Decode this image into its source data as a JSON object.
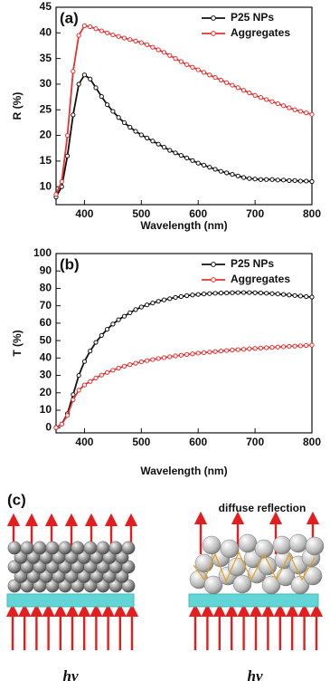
{
  "chart_data": [
    {
      "type": "line",
      "panel_label": "(a)",
      "x_label": "Wavelength (nm)",
      "y_label": "R (%)",
      "xlim": [
        350,
        800
      ],
      "xticks": [
        400,
        500,
        600,
        700,
        800
      ],
      "ylim": [
        6.5,
        45
      ],
      "yticks": [
        10,
        15,
        20,
        25,
        30,
        35,
        40,
        45
      ],
      "legend": "upper right",
      "grid": false,
      "x": [
        350,
        360,
        370,
        380,
        390,
        400,
        410,
        420,
        430,
        440,
        450,
        460,
        470,
        480,
        490,
        500,
        510,
        520,
        530,
        540,
        550,
        560,
        570,
        580,
        590,
        600,
        610,
        620,
        630,
        640,
        650,
        660,
        670,
        680,
        690,
        700,
        710,
        720,
        730,
        740,
        750,
        760,
        770,
        780,
        790,
        800
      ],
      "series": [
        {
          "name": "P25 NPs",
          "color": "#111111",
          "values": [
            8,
            10,
            16,
            24,
            30,
            31.8,
            31,
            29.3,
            27.6,
            26,
            24.7,
            23.5,
            22.5,
            21.6,
            20.8,
            20.1,
            19.5,
            18.9,
            18.3,
            17.7,
            17.1,
            16.6,
            16.1,
            15.6,
            15.1,
            14.6,
            14.2,
            13.8,
            13.4,
            13,
            12.7,
            12.4,
            12.1,
            11.8,
            11.6,
            11.5,
            11.4,
            11.4,
            11.4,
            11.3,
            11.3,
            11.2,
            11.2,
            11.1,
            11.1,
            11
          ]
        },
        {
          "name": "Aggregates",
          "color": "#e8312f",
          "values": [
            8.5,
            11,
            20,
            32.5,
            39.5,
            41.4,
            41.2,
            40.8,
            40.4,
            40,
            39.6,
            39.3,
            39,
            38.7,
            38.4,
            38.1,
            37.7,
            37.2,
            36.7,
            36.2,
            35.6,
            35,
            34.4,
            33.8,
            33.3,
            32.8,
            32.3,
            31.8,
            31.3,
            30.8,
            30.3,
            29.8,
            29.3,
            28.8,
            28.3,
            27.8,
            27.4,
            27,
            26.6,
            26.2,
            25.8,
            25.4,
            25,
            24.7,
            24.4,
            24.1
          ]
        }
      ]
    },
    {
      "type": "line",
      "panel_label": "(b)",
      "x_label": "Wavelength (nm)",
      "y_label": "T (%)",
      "xlim": [
        350,
        800
      ],
      "xticks": [
        400,
        500,
        600,
        700,
        800
      ],
      "ylim": [
        -3,
        100
      ],
      "yticks": [
        0,
        10,
        20,
        30,
        40,
        50,
        60,
        70,
        80,
        90,
        100
      ],
      "legend": "upper right",
      "grid": false,
      "x": [
        350,
        360,
        370,
        380,
        390,
        400,
        410,
        420,
        430,
        440,
        450,
        460,
        470,
        480,
        490,
        500,
        510,
        520,
        530,
        540,
        550,
        560,
        570,
        580,
        590,
        600,
        610,
        620,
        630,
        640,
        650,
        660,
        670,
        680,
        690,
        700,
        710,
        720,
        730,
        740,
        750,
        760,
        770,
        780,
        790,
        800
      ],
      "series": [
        {
          "name": "P25 NPs",
          "color": "#111111",
          "values": [
            0,
            2,
            8,
            19,
            30,
            38,
            44,
            49,
            53,
            56.5,
            59.5,
            62,
            64,
            66,
            67.8,
            69.3,
            70.5,
            71.6,
            72.6,
            73.4,
            74.1,
            74.8,
            75.3,
            75.8,
            76.2,
            76.5,
            76.8,
            77,
            77.2,
            77.3,
            77.4,
            77.5,
            77.6,
            77.6,
            77.6,
            77.5,
            77.4,
            77.2,
            77,
            76.8,
            76.5,
            76.2,
            75.9,
            75.6,
            75.3,
            75
          ]
        },
        {
          "name": "Aggregates",
          "color": "#e8312f",
          "values": [
            0,
            2,
            7,
            16,
            21.5,
            24.5,
            26.5,
            28.5,
            30.2,
            31.7,
            33,
            34.2,
            35.3,
            36.2,
            37,
            37.8,
            38.5,
            39.1,
            39.7,
            40.2,
            40.7,
            41.2,
            41.6,
            42,
            42.4,
            42.8,
            43.1,
            43.4,
            43.7,
            44,
            44.3,
            44.6,
            44.8,
            45,
            45.3,
            45.5,
            45.7,
            45.9,
            46.1,
            46.3,
            46.5,
            46.7,
            46.8,
            47,
            47.2,
            47.4
          ]
        }
      ]
    }
  ],
  "diagram": {
    "panel_label": "(c)",
    "annotation": "diffuse reflection",
    "photon_labels": [
      "hv",
      "hv"
    ]
  }
}
